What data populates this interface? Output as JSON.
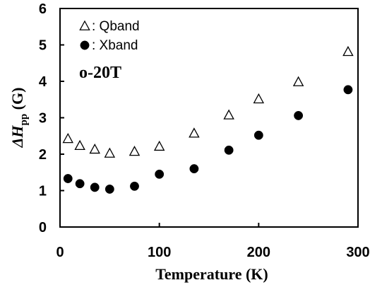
{
  "chart_data": {
    "type": "scatter",
    "xlabel": "Temperature (K)",
    "ylabel_main": "ΔH",
    "ylabel_sub": "pp",
    "ylabel_unit": " (G)",
    "xlim": [
      0,
      300
    ],
    "ylim": [
      0,
      6
    ],
    "xticks": [
      0,
      100,
      200,
      300
    ],
    "yticks": [
      0,
      1,
      2,
      3,
      4,
      5,
      6
    ],
    "grid": false,
    "legend_position": "top-left",
    "annotation": "o-20T",
    "series": [
      {
        "name": "Qband",
        "legend_label": ": Qband",
        "marker": "open-triangle",
        "color": "#000000",
        "x": [
          8,
          20,
          35,
          50,
          75,
          100,
          135,
          170,
          200,
          240,
          290
        ],
        "y": [
          2.42,
          2.23,
          2.13,
          2.02,
          2.07,
          2.21,
          2.57,
          3.07,
          3.51,
          3.98,
          4.81
        ]
      },
      {
        "name": "Xband",
        "legend_label": ": Xband",
        "marker": "filled-circle",
        "color": "#000000",
        "x": [
          8,
          20,
          35,
          50,
          75,
          100,
          135,
          170,
          200,
          240,
          290
        ],
        "y": [
          1.33,
          1.19,
          1.09,
          1.04,
          1.12,
          1.45,
          1.6,
          2.11,
          2.52,
          3.06,
          3.77
        ]
      }
    ]
  }
}
